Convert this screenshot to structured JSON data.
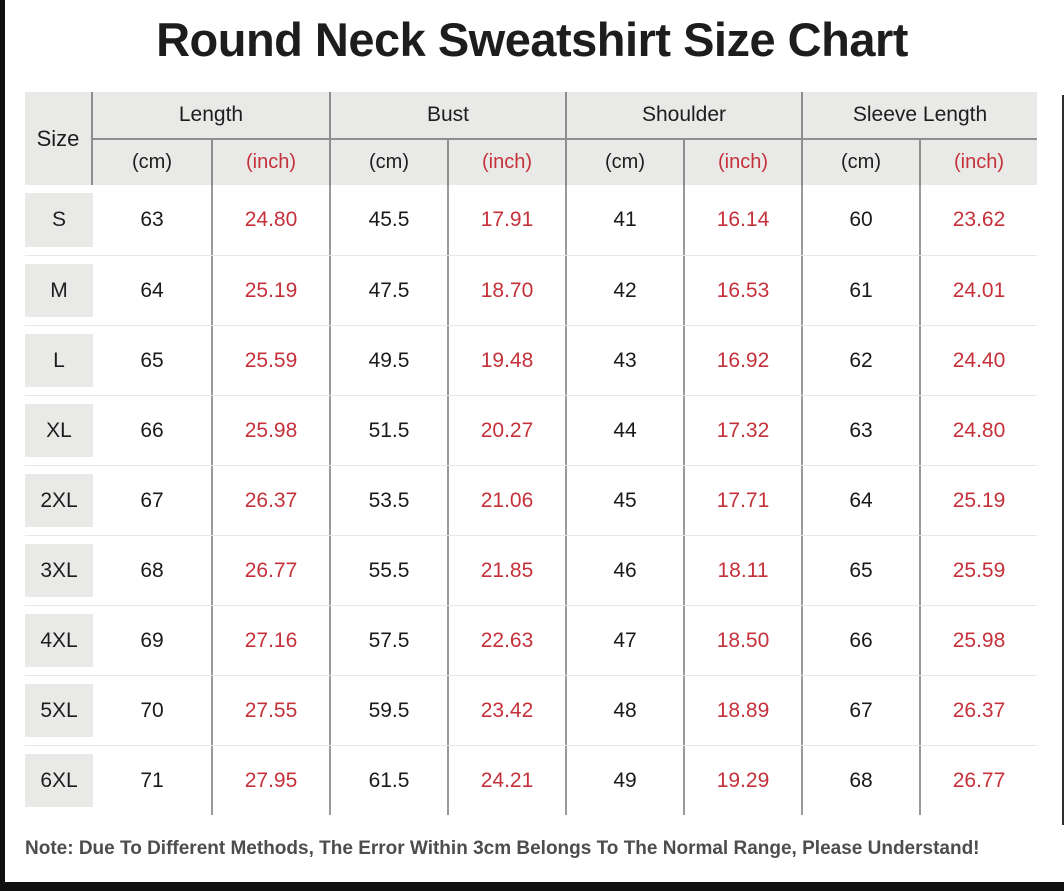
{
  "page": {
    "title": "Round Neck Sweatshirt Size Chart",
    "note": "Note: Due To Different Methods, The Error Within 3cm Belongs To The Normal Range, Please Understand!"
  },
  "colors": {
    "accent_red": "#c5313a",
    "header_bg": "#e9e9e7",
    "divider_dark": "#8e8e8e",
    "divider_light": "#e7e7e4",
    "text_dark": "#1d1d1d",
    "note_gray": "#4d4d4d",
    "frame_black": "#101010"
  },
  "table": {
    "size_header": "Size",
    "groups": [
      {
        "label": "Length"
      },
      {
        "label": "Bust"
      },
      {
        "label": "Shoulder"
      },
      {
        "label": "Sleeve Length"
      }
    ],
    "unit_cm": "(cm)",
    "unit_inch": "(inch)",
    "rows": [
      {
        "size": "S",
        "values": [
          "63",
          "24.80",
          "45.5",
          "17.91",
          "41",
          "16.14",
          "60",
          "23.62"
        ]
      },
      {
        "size": "M",
        "values": [
          "64",
          "25.19",
          "47.5",
          "18.70",
          "42",
          "16.53",
          "61",
          "24.01"
        ]
      },
      {
        "size": "L",
        "values": [
          "65",
          "25.59",
          "49.5",
          "19.48",
          "43",
          "16.92",
          "62",
          "24.40"
        ]
      },
      {
        "size": "XL",
        "values": [
          "66",
          "25.98",
          "51.5",
          "20.27",
          "44",
          "17.32",
          "63",
          "24.80"
        ]
      },
      {
        "size": "2XL",
        "values": [
          "67",
          "26.37",
          "53.5",
          "21.06",
          "45",
          "17.71",
          "64",
          "25.19"
        ]
      },
      {
        "size": "3XL",
        "values": [
          "68",
          "26.77",
          "55.5",
          "21.85",
          "46",
          "18.11",
          "65",
          "25.59"
        ]
      },
      {
        "size": "4XL",
        "values": [
          "69",
          "27.16",
          "57.5",
          "22.63",
          "47",
          "18.50",
          "66",
          "25.98"
        ]
      },
      {
        "size": "5XL",
        "values": [
          "70",
          "27.55",
          "59.5",
          "23.42",
          "48",
          "18.89",
          "67",
          "26.37"
        ]
      },
      {
        "size": "6XL",
        "values": [
          "71",
          "27.95",
          "61.5",
          "24.21",
          "49",
          "19.29",
          "68",
          "26.77"
        ]
      }
    ]
  },
  "chart_data": {
    "type": "table",
    "title": "Round Neck Sweatshirt Size Chart",
    "columns": [
      "Size",
      "Length (cm)",
      "Length (inch)",
      "Bust (cm)",
      "Bust (inch)",
      "Shoulder (cm)",
      "Shoulder (inch)",
      "Sleeve Length (cm)",
      "Sleeve Length (inch)"
    ],
    "rows": [
      [
        "S",
        63,
        24.8,
        45.5,
        17.91,
        41,
        16.14,
        60,
        23.62
      ],
      [
        "M",
        64,
        25.19,
        47.5,
        18.7,
        42,
        16.53,
        61,
        24.01
      ],
      [
        "L",
        65,
        25.59,
        49.5,
        19.48,
        43,
        16.92,
        62,
        24.4
      ],
      [
        "XL",
        66,
        25.98,
        51.5,
        20.27,
        44,
        17.32,
        63,
        24.8
      ],
      [
        "2XL",
        67,
        26.37,
        53.5,
        21.06,
        45,
        17.71,
        64,
        25.19
      ],
      [
        "3XL",
        68,
        26.77,
        55.5,
        21.85,
        46,
        18.11,
        65,
        25.59
      ],
      [
        "4XL",
        69,
        27.16,
        57.5,
        22.63,
        47,
        18.5,
        66,
        25.98
      ],
      [
        "5XL",
        70,
        27.55,
        59.5,
        23.42,
        48,
        18.89,
        67,
        26.37
      ],
      [
        "6XL",
        71,
        27.95,
        61.5,
        24.21,
        49,
        19.29,
        68,
        26.77
      ]
    ],
    "notes": "Note: Due To Different Methods, The Error Within 3cm Belongs To The Normal Range, Please Understand!",
    "value_color_cm": "#1a1a1a",
    "value_color_inch": "#c5313a"
  }
}
